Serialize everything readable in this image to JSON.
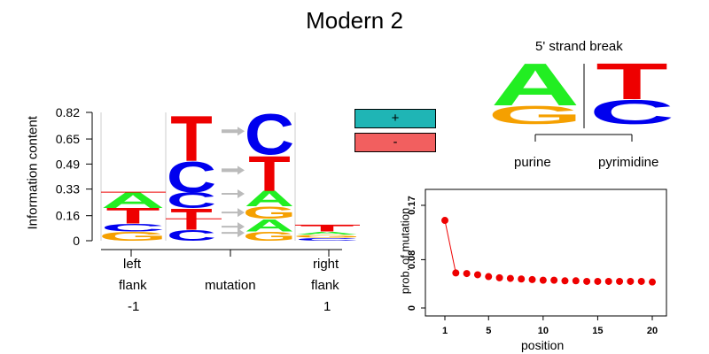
{
  "title": "Modern 2",
  "colors": {
    "A": "#22ee22",
    "C": "#0000ee",
    "G": "#f5a000",
    "T": "#ee0000",
    "plus": "#1fb5b5",
    "minus": "#f25f5f",
    "point": "#ee0000",
    "arrow": "#bbbbbb"
  },
  "logo": {
    "ylabel": "Information content",
    "yticks": [
      "0",
      "0.16",
      "0.33",
      "0.49",
      "0.65",
      "0.82"
    ],
    "ytick_values": [
      0,
      0.16,
      0.33,
      0.49,
      0.65,
      0.82
    ],
    "labels": {
      "left_line1": "left",
      "left_line2": "flank",
      "left_line3": "-1",
      "mutation": "mutation",
      "right_line1": "right",
      "right_line2": "flank",
      "right_line3": "1"
    },
    "left_flank": [
      {
        "base": "G",
        "h": 0.06
      },
      {
        "base": "C",
        "h": 0.05
      },
      {
        "base": "T",
        "h": 0.1
      },
      {
        "base": "A",
        "h": 0.1
      }
    ],
    "mutation_from": [
      {
        "base": "C",
        "h": 0.07
      },
      {
        "base": "T",
        "h": 0.14
      },
      {
        "base": "C",
        "h": 0.1
      },
      {
        "base": "C",
        "h": 0.2
      },
      {
        "base": "T",
        "h": 0.3
      }
    ],
    "mutation_to": [
      {
        "base": "G",
        "h": 0.06
      },
      {
        "base": "A",
        "h": 0.08
      },
      {
        "base": "G",
        "h": 0.08
      },
      {
        "base": "A",
        "h": 0.1
      },
      {
        "base": "T",
        "h": 0.23
      },
      {
        "base": "C",
        "h": 0.27
      }
    ],
    "right_flank": [
      {
        "base": "C",
        "h": 0.02
      },
      {
        "base": "G",
        "h": 0.02
      },
      {
        "base": "A",
        "h": 0.02
      },
      {
        "base": "T",
        "h": 0.04
      }
    ]
  },
  "legend": {
    "plus": "+",
    "minus": "-"
  },
  "strand": {
    "title": "5' strand break",
    "left_label": "purine",
    "right_label": "pyrimidine",
    "left_stack": [
      {
        "base": "G",
        "h": 0.3
      },
      {
        "base": "A",
        "h": 0.7
      }
    ],
    "right_stack": [
      {
        "base": "C",
        "h": 0.4
      },
      {
        "base": "T",
        "h": 0.6
      }
    ]
  },
  "chart_data": {
    "type": "scatter",
    "xlabel": "position",
    "ylabel": "prob. of mutation",
    "xticks": [
      1,
      5,
      10,
      15,
      20
    ],
    "yticks": [
      "0",
      "0.08",
      "0.17"
    ],
    "ylim": [
      0,
      0.17
    ],
    "xlim": [
      1,
      20
    ],
    "x": [
      1,
      2,
      3,
      4,
      5,
      6,
      7,
      8,
      9,
      10,
      11,
      12,
      13,
      14,
      15,
      16,
      17,
      18,
      19,
      20
    ],
    "y": [
      0.145,
      0.058,
      0.057,
      0.055,
      0.052,
      0.05,
      0.049,
      0.048,
      0.047,
      0.046,
      0.046,
      0.045,
      0.045,
      0.044,
      0.044,
      0.044,
      0.044,
      0.044,
      0.044,
      0.043
    ]
  }
}
